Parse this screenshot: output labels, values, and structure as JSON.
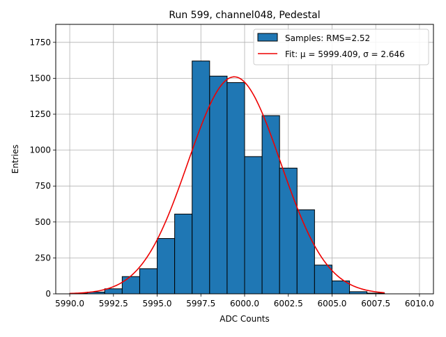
{
  "chart_data": {
    "type": "bar",
    "title": "Run 599, channel048, Pedestal",
    "xlabel": "ADC Counts",
    "ylabel": "Entries",
    "xlim": [
      5989.2,
      6010.8
    ],
    "ylim": [
      0,
      1875
    ],
    "x_ticks": [
      5990.0,
      5992.5,
      5995.0,
      5997.5,
      6000.0,
      6002.5,
      6005.0,
      6007.5,
      6010.0
    ],
    "x_tick_labels": [
      "5990.0",
      "5992.5",
      "5995.0",
      "5997.5",
      "6000.0",
      "6002.5",
      "6005.0",
      "6007.5",
      "6010.0"
    ],
    "y_ticks": [
      0,
      250,
      500,
      750,
      1000,
      1250,
      1500,
      1750
    ],
    "y_tick_labels": [
      "0",
      "250",
      "500",
      "750",
      "1000",
      "1250",
      "1500",
      "1750"
    ],
    "grid": true,
    "legend_position": "top-right",
    "bin_edges": [
      5990,
      5991,
      5992,
      5993,
      5994,
      5995,
      5996,
      5997,
      5998,
      5999,
      6000,
      6001,
      6002,
      6003,
      6004,
      6005,
      6006,
      6007,
      6008
    ],
    "series": [
      {
        "name": "Samples: RMS=2.52",
        "kind": "histogram",
        "color": "#1f77b4",
        "edge_color": "#000000",
        "values": [
          3,
          12,
          35,
          120,
          175,
          385,
          555,
          1620,
          1515,
          1470,
          955,
          1240,
          875,
          585,
          200,
          90,
          15,
          5
        ]
      },
      {
        "name": "Fit: μ = 5999.409, σ = 2.646",
        "kind": "line",
        "color": "#ee0000",
        "model": "gaussian",
        "amplitude": 1510,
        "mu": 5999.409,
        "sigma": 2.646,
        "x_range": [
          5990,
          6008
        ]
      }
    ]
  }
}
